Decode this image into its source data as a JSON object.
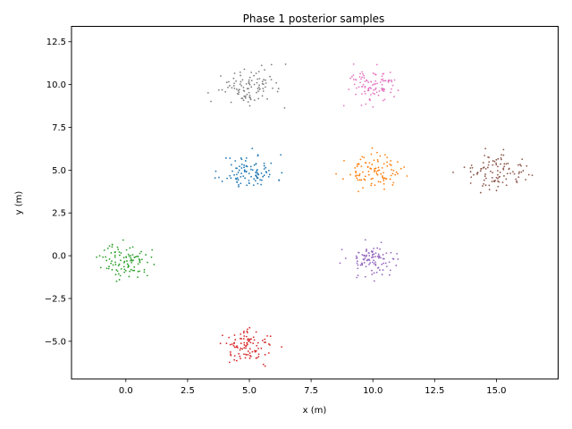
{
  "chart_data": {
    "type": "scatter",
    "title": "Phase 1 posterior samples",
    "xlabel": "x (m)",
    "ylabel": "y (m)",
    "xlim": [
      -2.2,
      17.5
    ],
    "ylim": [
      -7.2,
      13.4
    ],
    "xticks": [
      0.0,
      2.5,
      5.0,
      7.5,
      10.0,
      12.5,
      15.0
    ],
    "xtick_labels": [
      "0.0",
      "2.5",
      "5.0",
      "7.5",
      "10.0",
      "12.5",
      "15.0"
    ],
    "yticks": [
      -5.0,
      -2.5,
      0.0,
      2.5,
      5.0,
      7.5,
      10.0,
      12.5
    ],
    "ytick_labels": [
      "−5.0",
      "−2.5",
      "0.0",
      "2.5",
      "5.0",
      "7.5",
      "10.0",
      "12.5"
    ],
    "grid": false,
    "series": [
      {
        "color": "#1f77b4",
        "center": [
          5.0,
          4.9
        ],
        "spread": [
          0.55,
          0.5
        ],
        "count": 100,
        "seed": 11
      },
      {
        "color": "#ff7f0e",
        "center": [
          10.0,
          4.9
        ],
        "spread": [
          0.55,
          0.45
        ],
        "count": 100,
        "seed": 23
      },
      {
        "color": "#2ca02c",
        "center": [
          0.0,
          -0.3
        ],
        "spread": [
          0.5,
          0.5
        ],
        "count": 100,
        "seed": 37
      },
      {
        "color": "#d62728",
        "center": [
          5.0,
          -5.3
        ],
        "spread": [
          0.5,
          0.45
        ],
        "count": 100,
        "seed": 41
      },
      {
        "color": "#9467bd",
        "center": [
          10.0,
          -0.2
        ],
        "spread": [
          0.5,
          0.45
        ],
        "count": 100,
        "seed": 53
      },
      {
        "color": "#8c564b",
        "center": [
          15.0,
          4.8
        ],
        "spread": [
          0.6,
          0.55
        ],
        "count": 100,
        "seed": 67
      },
      {
        "color": "#e377c2",
        "center": [
          10.0,
          9.9
        ],
        "spread": [
          0.55,
          0.55
        ],
        "count": 100,
        "seed": 71
      },
      {
        "color": "#7f7f7f",
        "center": [
          5.0,
          9.8
        ],
        "spread": [
          0.6,
          0.55
        ],
        "count": 100,
        "seed": 83
      }
    ]
  }
}
